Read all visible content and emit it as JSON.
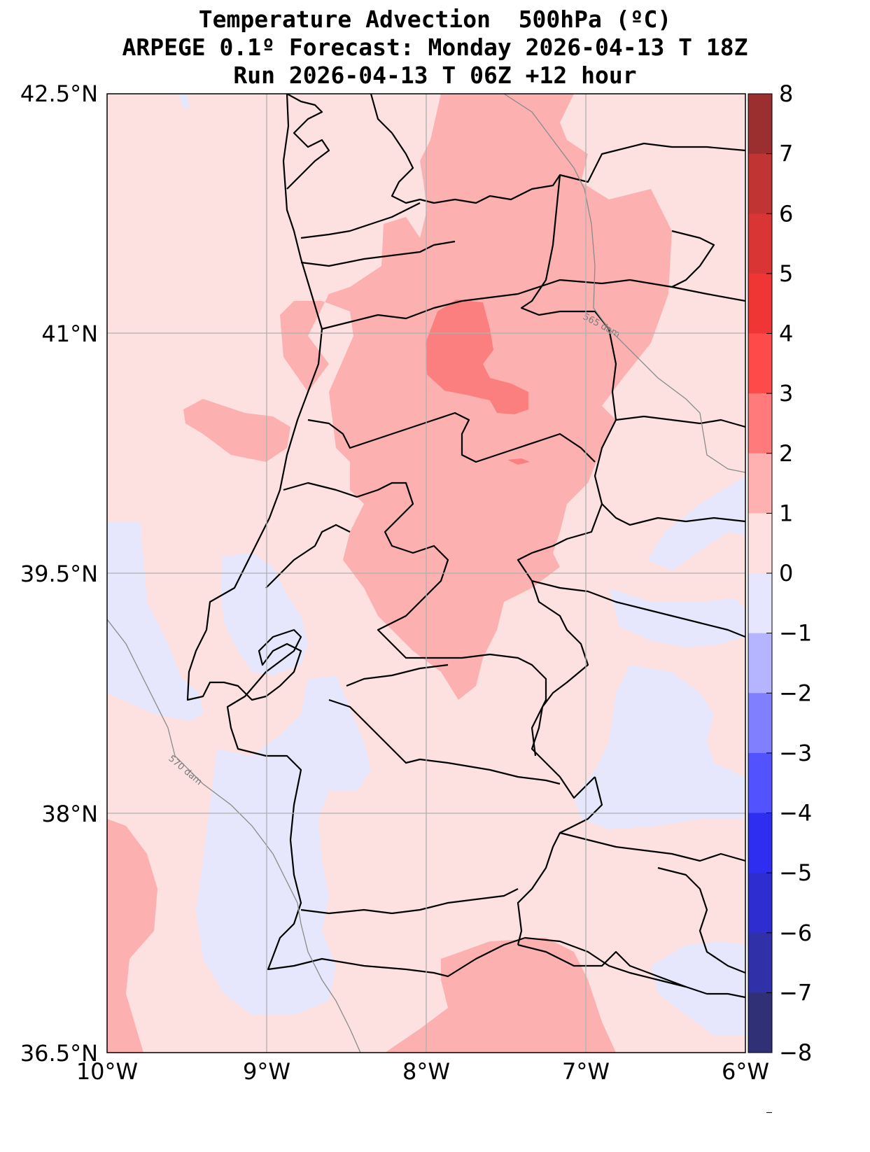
{
  "title": {
    "line1": "Temperature Advection  500hPa (ºC)",
    "line2": "ARPEGE 0.1º Forecast: Monday 2026-04-13 T 18Z",
    "line3": "Run 2026-04-13 T 06Z +12 hour"
  },
  "map": {
    "lon_range": [
      -10,
      -6
    ],
    "lat_range": [
      36.5,
      42.5
    ],
    "lon_ticks": [
      "10°W",
      "9°W",
      "8°W",
      "7°W",
      "6°W"
    ],
    "lat_ticks": [
      "42.5°N",
      "41°N",
      "39.5°N",
      "38°N",
      "36.5°N"
    ],
    "grid": true,
    "background_color": "#fde0e0",
    "contour_labels": [
      "565 dam",
      "570 dam"
    ]
  },
  "colorbar": {
    "levels": [
      "8",
      "7",
      "6",
      "5",
      "4",
      "3",
      "2",
      "1",
      "0",
      "−1",
      "−2",
      "−3",
      "−4",
      "−5",
      "−6",
      "−7",
      "−8"
    ],
    "colors": [
      "#9b2f2f",
      "#c03434",
      "#d93535",
      "#f03535",
      "#ff4a4a",
      "#ff7a7a",
      "#ffb0b0",
      "#ffe0e0",
      "#e6e6ff",
      "#b4b4ff",
      "#8080ff",
      "#5252ff",
      "#2e2ef0",
      "#2e2ed0",
      "#3030a8",
      "#303076"
    ]
  }
}
